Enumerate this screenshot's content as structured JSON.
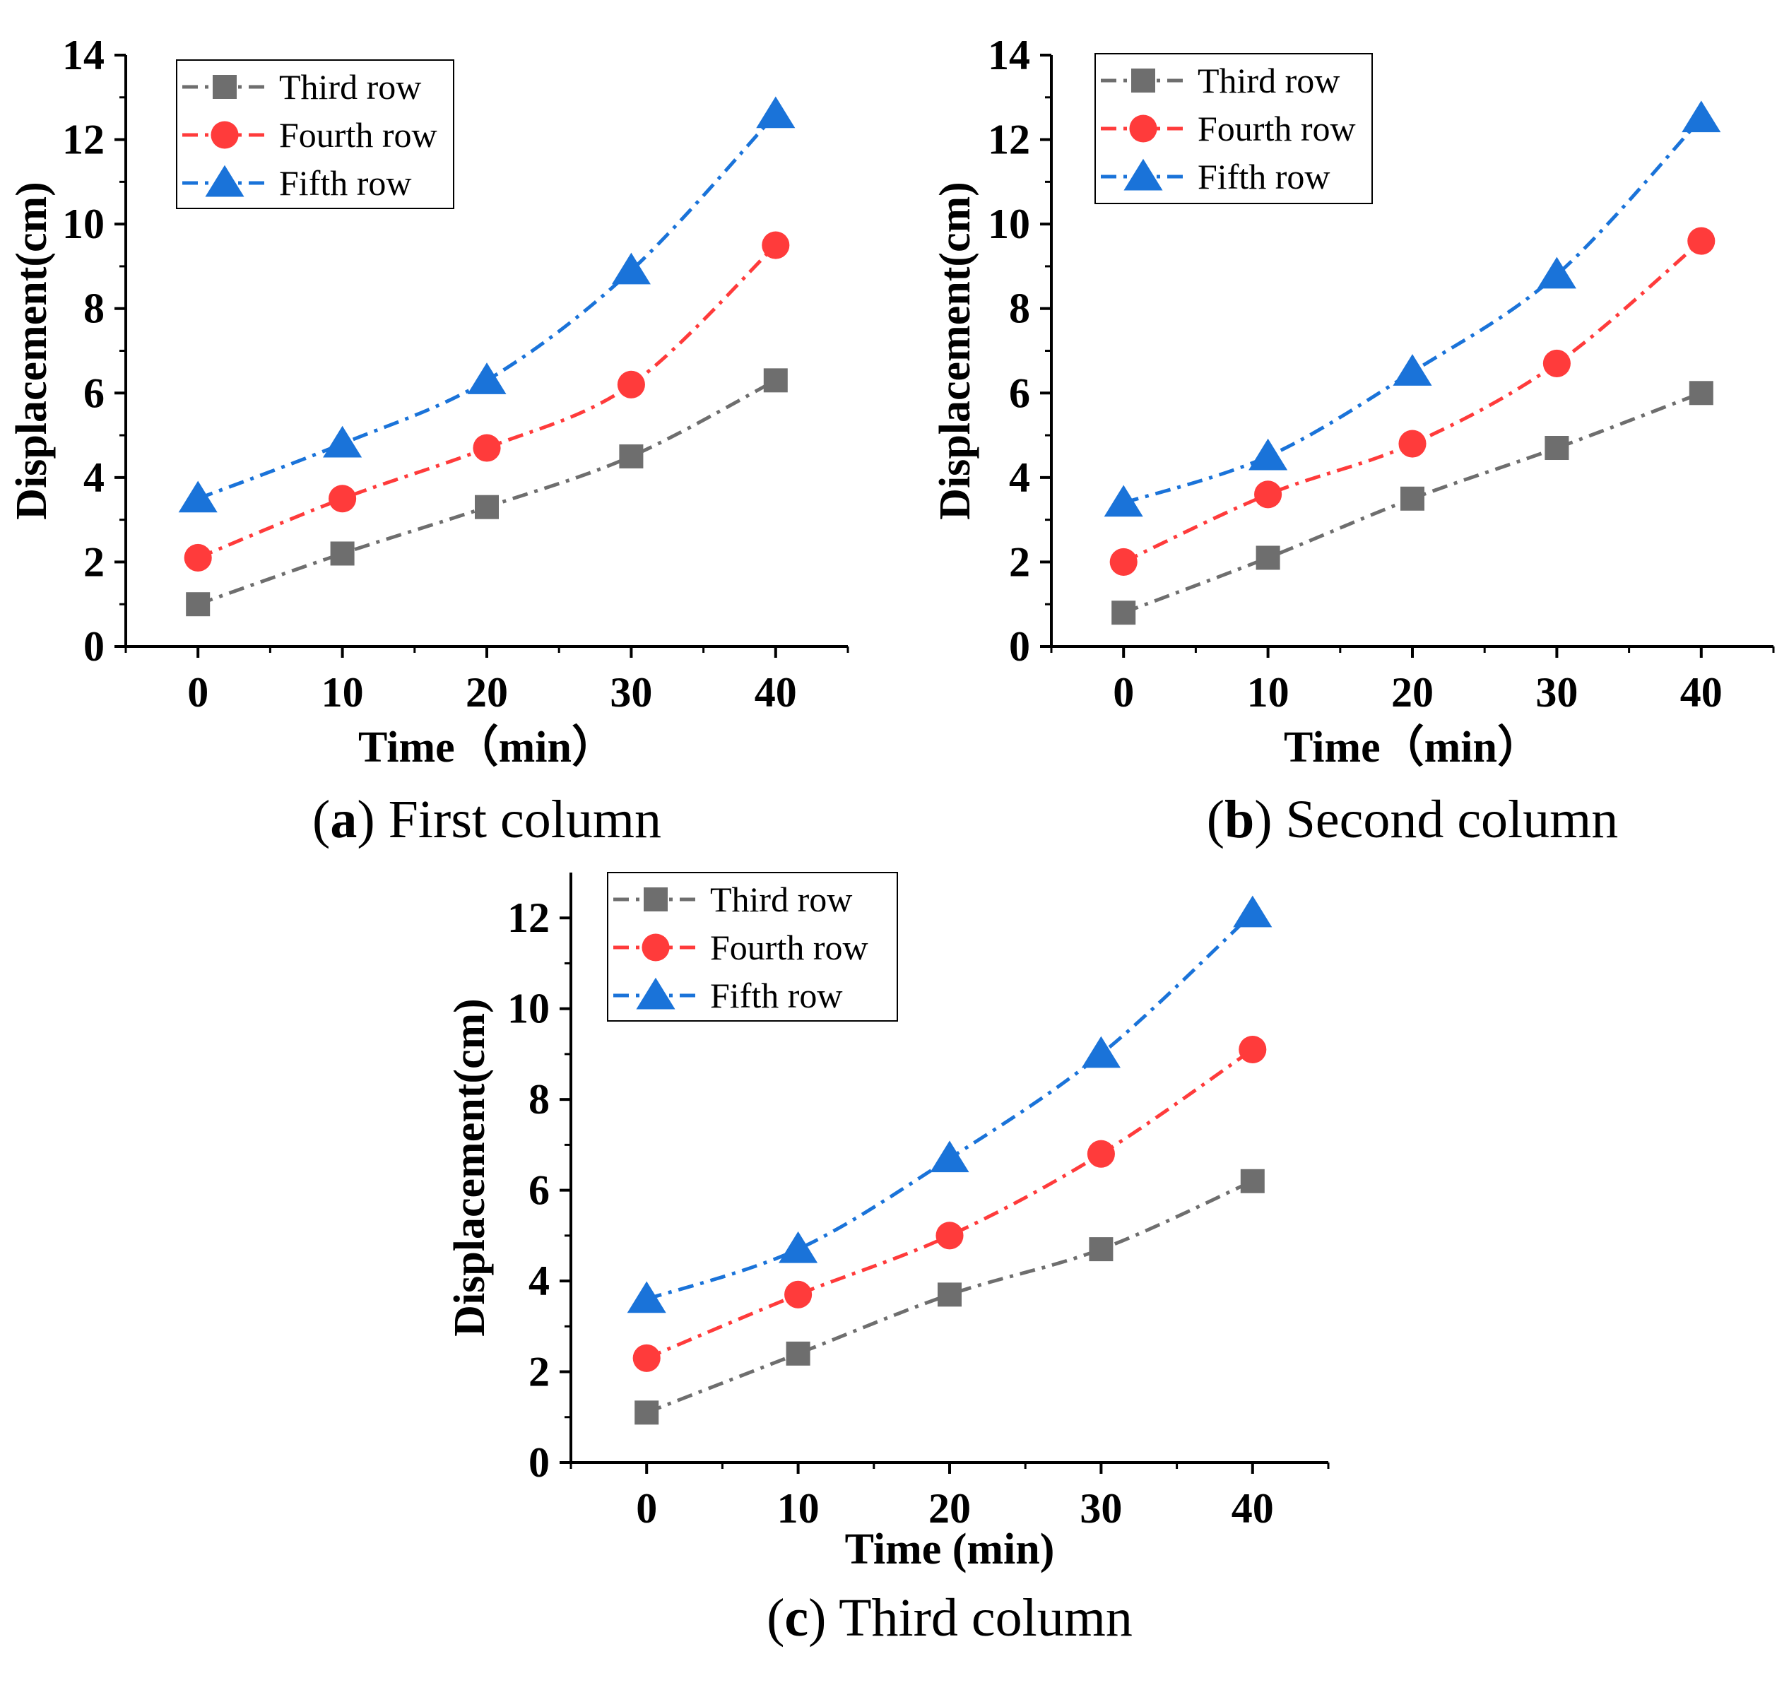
{
  "figure": {
    "colors": {
      "third_row": "#6e6e6e",
      "fourth_row": "#ff3b3b",
      "fifth_row": "#1a73d9",
      "axis": "#000000"
    }
  },
  "chart_data": [
    {
      "type": "line",
      "caption": {
        "letter": "a",
        "text": "First column"
      },
      "xlabel": "Time（min）",
      "ylabel": "Displacement(cm)",
      "x": [
        0,
        10,
        20,
        30,
        40
      ],
      "xticks": [
        "0",
        "10",
        "20",
        "30",
        "40"
      ],
      "yticks": [
        "0",
        "2",
        "4",
        "6",
        "8",
        "10",
        "12",
        "14"
      ],
      "xlim": [
        -5,
        45
      ],
      "ylim": [
        0,
        14
      ],
      "legend_position": "top-left",
      "series": [
        {
          "name": "Third row",
          "marker": "square",
          "values": [
            1.0,
            2.2,
            3.3,
            4.5,
            6.3
          ]
        },
        {
          "name": "Fourth row",
          "marker": "circle",
          "values": [
            2.1,
            3.5,
            4.7,
            6.2,
            9.5
          ]
        },
        {
          "name": "Fifth row",
          "marker": "triangle",
          "values": [
            3.5,
            4.8,
            6.3,
            8.9,
            12.6
          ]
        }
      ]
    },
    {
      "type": "line",
      "caption": {
        "letter": "b",
        "text": "Second column"
      },
      "xlabel": "Time（min）",
      "ylabel": "Displacement(cm)",
      "x": [
        0,
        10,
        20,
        30,
        40
      ],
      "xticks": [
        "0",
        "10",
        "20",
        "30",
        "40"
      ],
      "yticks": [
        "0",
        "2",
        "4",
        "6",
        "8",
        "10",
        "12",
        "14"
      ],
      "xlim": [
        -5,
        45
      ],
      "ylim": [
        0,
        14
      ],
      "legend_position": "top-left",
      "series": [
        {
          "name": "Third row",
          "marker": "square",
          "values": [
            0.8,
            2.1,
            3.5,
            4.7,
            6.0
          ]
        },
        {
          "name": "Fourth row",
          "marker": "circle",
          "values": [
            2.0,
            3.6,
            4.8,
            6.7,
            9.6
          ]
        },
        {
          "name": "Fifth row",
          "marker": "triangle",
          "values": [
            3.4,
            4.5,
            6.5,
            8.8,
            12.5
          ]
        }
      ]
    },
    {
      "type": "line",
      "caption": {
        "letter": "c",
        "text": "Third column"
      },
      "xlabel": "Time (min)",
      "ylabel": "Displacement(cm)",
      "x": [
        0,
        10,
        20,
        30,
        40
      ],
      "xticks": [
        "0",
        "10",
        "20",
        "30",
        "40"
      ],
      "yticks": [
        "0",
        "2",
        "4",
        "6",
        "8",
        "10",
        "12"
      ],
      "xlim": [
        -5,
        45
      ],
      "ylim": [
        0,
        13
      ],
      "legend_position": "top-left",
      "series": [
        {
          "name": "Third row",
          "marker": "square",
          "values": [
            1.1,
            2.4,
            3.7,
            4.7,
            6.2
          ]
        },
        {
          "name": "Fourth row",
          "marker": "circle",
          "values": [
            2.3,
            3.7,
            5.0,
            6.8,
            9.1
          ]
        },
        {
          "name": "Fifth row",
          "marker": "triangle",
          "values": [
            3.6,
            4.7,
            6.7,
            9.0,
            12.1
          ]
        }
      ]
    }
  ]
}
